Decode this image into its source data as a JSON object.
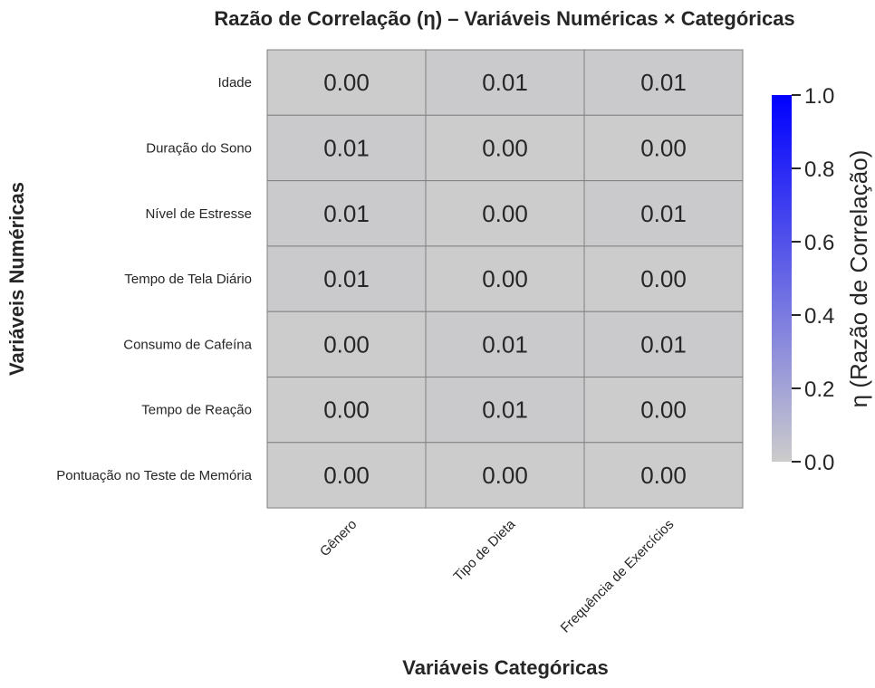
{
  "chart_data": {
    "type": "heatmap",
    "title": "Razão de Correlação (η) – Variáveis Numéricas × Categóricas",
    "xlabel": "Variáveis Categóricas",
    "ylabel": "Variáveis Numéricas",
    "x_categories": [
      "Gênero",
      "Tipo de Dieta",
      "Frequência de Exercícios"
    ],
    "y_categories": [
      "Idade",
      "Duração do Sono",
      "Nível de Estresse",
      "Tempo de Tela Diário",
      "Consumo de Cafeína",
      "Tempo de Reação",
      "Pontuação no Teste de Memória"
    ],
    "values": [
      [
        0.0,
        0.01,
        0.01
      ],
      [
        0.01,
        0.0,
        0.0
      ],
      [
        0.01,
        0.0,
        0.01
      ],
      [
        0.01,
        0.0,
        0.0
      ],
      [
        0.0,
        0.01,
        0.01
      ],
      [
        0.0,
        0.01,
        0.0
      ],
      [
        0.0,
        0.0,
        0.0
      ]
    ],
    "value_labels": [
      [
        "0.00",
        "0.01",
        "0.01"
      ],
      [
        "0.01",
        "0.00",
        "0.00"
      ],
      [
        "0.01",
        "0.00",
        "0.01"
      ],
      [
        "0.01",
        "0.00",
        "0.00"
      ],
      [
        "0.00",
        "0.01",
        "0.01"
      ],
      [
        "0.00",
        "0.01",
        "0.00"
      ],
      [
        "0.00",
        "0.00",
        "0.00"
      ]
    ],
    "colorbar": {
      "label": "η (Razão de Correlação)",
      "range": [
        0,
        1
      ],
      "ticks": [
        "0.0",
        "0.2",
        "0.4",
        "0.6",
        "0.8",
        "1.0"
      ],
      "color_low": "#cccccc",
      "color_high": "#0000ff"
    },
    "grid_line_color": "#808080"
  }
}
